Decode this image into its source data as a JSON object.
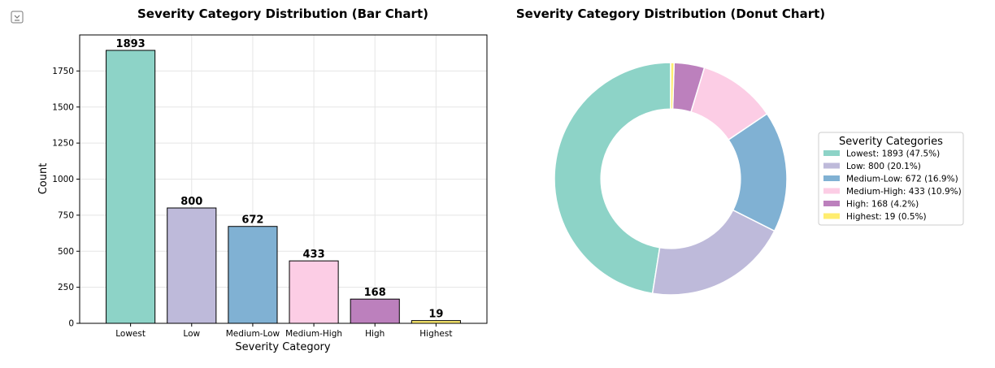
{
  "chart_data": [
    {
      "type": "bar",
      "title": "Severity Category Distribution (Bar Chart)",
      "xlabel": "Severity Category",
      "ylabel": "Count",
      "categories": [
        "Lowest",
        "Low",
        "Medium-Low",
        "Medium-High",
        "High",
        "Highest"
      ],
      "values": [
        1893,
        800,
        672,
        433,
        168,
        19
      ],
      "data_labels": [
        "1893",
        "800",
        "672",
        "433",
        "168",
        "19"
      ],
      "colors": [
        "#8dd3c7",
        "#bebada",
        "#80b1d3",
        "#fccde5",
        "#bc80bd",
        "#ffed6f"
      ],
      "ylim": [
        0,
        2000
      ],
      "yticks": [
        0,
        250,
        500,
        750,
        1000,
        1250,
        1500,
        1750
      ],
      "ytick_labels": [
        "0",
        "250",
        "500",
        "750",
        "1000",
        "1250",
        "1500",
        "1750"
      ],
      "grid": true
    },
    {
      "type": "pie",
      "title": "Severity Category Distribution (Donut Chart)",
      "labels": [
        "Lowest",
        "Low",
        "Medium-Low",
        "Medium-High",
        "High",
        "Highest"
      ],
      "values": [
        1893,
        800,
        672,
        433,
        168,
        19
      ],
      "colors": [
        "#8dd3c7",
        "#bebada",
        "#80b1d3",
        "#fccde5",
        "#bc80bd",
        "#ffed6f"
      ],
      "start_angle_deg": 90,
      "direction": "counterclockwise",
      "hole_ratio": 0.6,
      "legend": {
        "title": "Severity Categories",
        "placement": "right",
        "entries": [
          "Lowest: 1893 (47.5%)",
          "Low: 800 (20.1%)",
          "Medium-Low: 672 (16.9%)",
          "Medium-High: 433 (10.9%)",
          "High: 168 (4.2%)",
          "Highest: 19 (0.5%)"
        ]
      }
    }
  ]
}
